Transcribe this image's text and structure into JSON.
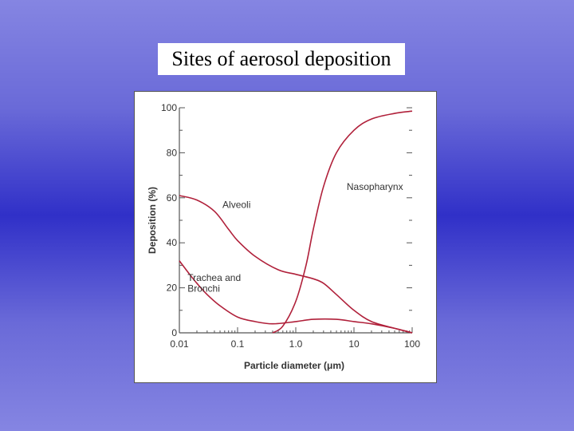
{
  "slide": {
    "title": "Sites of aerosol deposition"
  },
  "chart_data": {
    "type": "line",
    "title": "",
    "xlabel": "Particle diameter (μm)",
    "ylabel": "Deposition (%)",
    "xscale": "log",
    "xlim": [
      0.01,
      100
    ],
    "ylim": [
      0,
      100
    ],
    "xticks": [
      {
        "value": 0.01,
        "label": "0.01"
      },
      {
        "value": 0.1,
        "label": "0.1"
      },
      {
        "value": 1,
        "label": "1.0"
      },
      {
        "value": 10,
        "label": "10"
      },
      {
        "value": 100,
        "label": "100"
      }
    ],
    "yticks": [
      {
        "value": 0,
        "label": "0"
      },
      {
        "value": 20,
        "label": "20"
      },
      {
        "value": 40,
        "label": "40"
      },
      {
        "value": 60,
        "label": "60"
      },
      {
        "value": 80,
        "label": "80"
      },
      {
        "value": 100,
        "label": "100"
      }
    ],
    "line_color": "#b0203a",
    "series": [
      {
        "name": "Nasopharynx",
        "label_lines": [
          "Nasopharynx"
        ],
        "label_at": {
          "x": 7.5,
          "y": 63.5
        },
        "points": [
          [
            0.4,
            0
          ],
          [
            0.6,
            3
          ],
          [
            1.0,
            14
          ],
          [
            1.5,
            30
          ],
          [
            2.0,
            46
          ],
          [
            3.0,
            65
          ],
          [
            5.0,
            80
          ],
          [
            10,
            90
          ],
          [
            20,
            95
          ],
          [
            50,
            97.5
          ],
          [
            100,
            98.5
          ]
        ]
      },
      {
        "name": "Alveoli",
        "label_lines": [
          "Alveoli"
        ],
        "label_at": {
          "x": 0.055,
          "y": 55.5
        },
        "points": [
          [
            0.01,
            61
          ],
          [
            0.02,
            59
          ],
          [
            0.04,
            54
          ],
          [
            0.07,
            46
          ],
          [
            0.1,
            41
          ],
          [
            0.2,
            34
          ],
          [
            0.5,
            28
          ],
          [
            1.0,
            26
          ],
          [
            2.0,
            24
          ],
          [
            3.0,
            22
          ],
          [
            5.0,
            17
          ],
          [
            10,
            10
          ],
          [
            20,
            5
          ],
          [
            50,
            2
          ],
          [
            100,
            0
          ]
        ]
      },
      {
        "name": "Trachea and Bronchi",
        "label_lines": [
          "Trachea and",
          "Bronchi"
        ],
        "label_at": {
          "x": 0.0138,
          "y": 23
        },
        "points": [
          [
            0.01,
            32
          ],
          [
            0.015,
            26
          ],
          [
            0.02,
            22
          ],
          [
            0.03,
            17
          ],
          [
            0.05,
            12
          ],
          [
            0.1,
            7
          ],
          [
            0.2,
            5
          ],
          [
            0.4,
            4
          ],
          [
            1.0,
            5
          ],
          [
            2.0,
            6
          ],
          [
            5.0,
            6
          ],
          [
            10,
            5
          ],
          [
            20,
            4
          ],
          [
            50,
            2
          ],
          [
            100,
            0
          ]
        ]
      }
    ]
  }
}
